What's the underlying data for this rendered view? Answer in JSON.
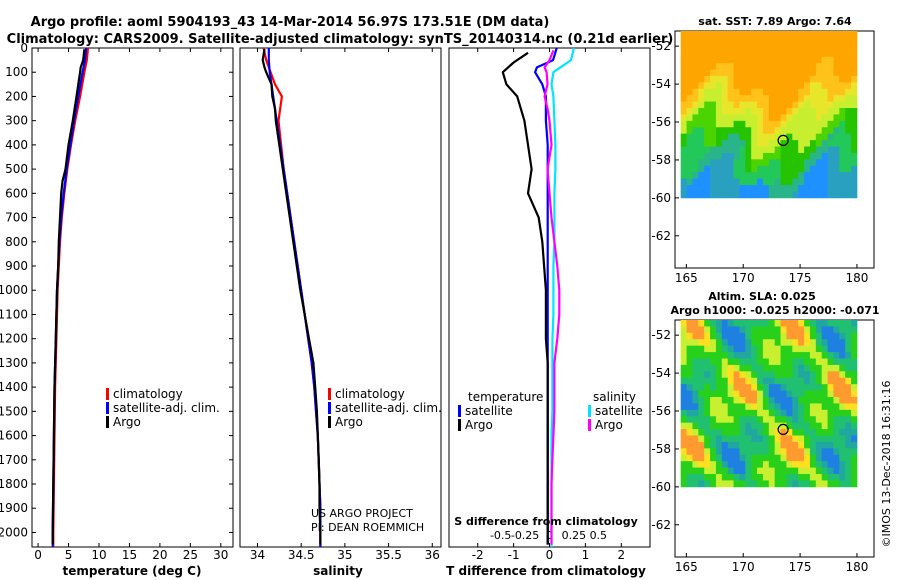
{
  "header": {
    "line1": "Argo profile: aoml 5904193_43 14-Mar-2014 56.97S 173.51E (DM data)",
    "line2": "Climatology: CARS2009. Satellite-adjusted climatology: synTS_20140314.nc (0.21d earlier)"
  },
  "colors": {
    "climatology": "#ff0000",
    "satellite": "#0000ff",
    "argo": "#000000",
    "satellite_salinity": "#00e5ff",
    "argo_salinity": "#ff00ff"
  },
  "chart_data": [
    {
      "id": "temperature",
      "type": "line",
      "xlabel": "temperature (deg C)",
      "ylabel": "",
      "xlim": [
        -1,
        32
      ],
      "ylim": [
        2060,
        0
      ],
      "x_ticks": [
        0,
        5,
        10,
        15,
        20,
        25,
        30
      ],
      "y_ticks": [
        0,
        100,
        200,
        300,
        400,
        500,
        600,
        700,
        800,
        900,
        1000,
        1100,
        1200,
        1300,
        1400,
        1500,
        1600,
        1700,
        1800,
        1900,
        2000
      ],
      "legend": [
        "climatology",
        "satellite-adj. clim.",
        "Argo"
      ],
      "legend_position": "lower-right",
      "series": [
        {
          "name": "climatology",
          "color": "#ff0000",
          "depth": [
            0,
            50,
            100,
            200,
            300,
            400,
            500,
            600,
            700,
            800,
            900,
            1000,
            1200,
            1400,
            1600,
            1800,
            2000,
            2060
          ],
          "values": [
            8.2,
            8.0,
            7.6,
            6.9,
            6.1,
            5.4,
            4.8,
            4.3,
            3.9,
            3.6,
            3.4,
            3.2,
            3.0,
            2.8,
            2.7,
            2.6,
            2.5,
            2.5
          ]
        },
        {
          "name": "satellite-adj. clim.",
          "color": "#0000ff",
          "depth": [
            0,
            50,
            100,
            200,
            300,
            400,
            500,
            600,
            700,
            800,
            900,
            1000,
            1200,
            1400,
            1600,
            1800,
            2000,
            2060
          ],
          "values": [
            7.9,
            7.7,
            7.3,
            6.6,
            5.9,
            5.3,
            4.7,
            4.2,
            3.8,
            3.5,
            3.3,
            3.1,
            2.9,
            2.7,
            2.6,
            2.5,
            2.4,
            2.4
          ]
        },
        {
          "name": "Argo",
          "color": "#000000",
          "depth": [
            5,
            50,
            80,
            100,
            150,
            200,
            300,
            400,
            500,
            550,
            600,
            700,
            800,
            900,
            1000,
            1200,
            1400,
            1600,
            1800,
            2000,
            2050
          ],
          "values": [
            7.6,
            7.4,
            7.0,
            6.9,
            6.6,
            6.3,
            5.7,
            5.0,
            4.5,
            4.0,
            3.8,
            3.6,
            3.4,
            3.3,
            3.1,
            2.9,
            2.7,
            2.6,
            2.5,
            2.4,
            2.4
          ]
        }
      ]
    },
    {
      "id": "salinity",
      "type": "line",
      "xlabel": "salinity",
      "ylabel": "",
      "xlim": [
        33.8,
        36.1
      ],
      "ylim": [
        2060,
        0
      ],
      "x_ticks": [
        34,
        34.5,
        35,
        35.5,
        36
      ],
      "x_tick_labels": [
        "34",
        "34.5",
        "35",
        "35.5",
        "36"
      ],
      "legend": [
        "climatology",
        "satellite-adj. clim.",
        "Argo"
      ],
      "legend_position": "lower-right",
      "annotations": [
        "US ARGO PROJECT",
        "PI: DEAN ROEMMICH"
      ],
      "series": [
        {
          "name": "climatology",
          "color": "#ff0000",
          "depth": [
            0,
            50,
            100,
            150,
            200,
            300,
            400,
            500,
            600,
            700,
            800,
            900,
            1000,
            1100,
            1200,
            1300,
            1400,
            1500,
            1600,
            1700,
            1800,
            1900,
            2000,
            2060
          ],
          "values": [
            34.07,
            34.1,
            34.15,
            34.2,
            34.28,
            34.24,
            34.27,
            34.3,
            34.34,
            34.38,
            34.42,
            34.46,
            34.5,
            34.54,
            34.58,
            34.62,
            34.65,
            34.67,
            34.69,
            34.7,
            34.71,
            34.72,
            34.72,
            34.72
          ]
        },
        {
          "name": "satellite-adj. clim.",
          "color": "#0000ff",
          "depth": [
            0,
            50,
            100,
            150,
            200,
            300,
            400,
            500,
            600,
            700,
            800,
            900,
            1000,
            1100,
            1200,
            1300,
            1400,
            1500,
            1600,
            1700,
            1800,
            1900,
            2000,
            2060
          ],
          "values": [
            34.13,
            34.13,
            34.14,
            34.16,
            34.18,
            34.22,
            34.26,
            34.3,
            34.34,
            34.38,
            34.42,
            34.46,
            34.5,
            34.54,
            34.58,
            34.62,
            34.65,
            34.67,
            34.69,
            34.7,
            34.71,
            34.72,
            34.72,
            34.72
          ]
        },
        {
          "name": "Argo",
          "color": "#000000",
          "depth": [
            5,
            50,
            80,
            100,
            150,
            200,
            250,
            300,
            400,
            500,
            600,
            700,
            800,
            900,
            1000,
            1100,
            1200,
            1300,
            1400,
            1500,
            1600,
            1700,
            1800,
            1900,
            2000,
            2050
          ],
          "values": [
            34.08,
            34.06,
            34.08,
            34.1,
            34.16,
            34.17,
            34.2,
            34.21,
            34.25,
            34.29,
            34.33,
            34.37,
            34.41,
            34.45,
            34.49,
            34.54,
            34.59,
            34.64,
            34.66,
            34.68,
            34.69,
            34.7,
            34.71,
            34.71,
            34.72,
            34.72
          ]
        }
      ]
    },
    {
      "id": "difference",
      "type": "line",
      "xlabel": "T difference from climatology",
      "secondary_xlabel": "S difference from climatology",
      "xlim": [
        -2.8,
        2.8
      ],
      "ylim": [
        2060,
        0
      ],
      "x_ticks": [
        -2,
        -1,
        0,
        1,
        2
      ],
      "x_tick_labels": [
        "-2",
        "-1",
        "0",
        "1",
        "2"
      ],
      "secondary_ticks": [
        -0.5,
        -0.25,
        0,
        0.25,
        0.5
      ],
      "secondary_tick_labels": [
        "-0.5",
        "-0.25",
        "0",
        "0.25",
        "0.5"
      ],
      "legend_titles": [
        "temperature",
        "salinity"
      ],
      "legend": [
        "satellite",
        "Argo",
        "satellite",
        "Argo"
      ],
      "legend_position": "lower",
      "series": [
        {
          "name": "temperature satellite",
          "color": "#0000ff",
          "depth": [
            0,
            50,
            80,
            100,
            150,
            200,
            300,
            400,
            500,
            600,
            800,
            1000,
            1200,
            1400,
            1600,
            1800,
            2000,
            2050
          ],
          "values": [
            0.2,
            0.1,
            -0.35,
            -0.4,
            -0.2,
            -0.1,
            -0.1,
            -0.05,
            -0.05,
            -0.05,
            -0.05,
            -0.05,
            -0.05,
            -0.05,
            -0.05,
            -0.05,
            -0.05,
            -0.05
          ]
        },
        {
          "name": "temperature Argo",
          "color": "#000000",
          "depth": [
            20,
            60,
            100,
            150,
            200,
            250,
            300,
            400,
            500,
            600,
            700,
            800,
            900,
            1000,
            1100,
            1200,
            1300,
            1400,
            1500,
            1600,
            1700,
            1800,
            1900,
            2000,
            2050
          ],
          "values": [
            -0.6,
            -1.0,
            -1.3,
            -1.2,
            -0.9,
            -0.8,
            -0.7,
            -0.6,
            -0.5,
            -0.6,
            -0.3,
            -0.2,
            -0.15,
            -0.1,
            -0.1,
            -0.1,
            -0.05,
            -0.05,
            -0.05,
            -0.05,
            -0.05,
            -0.05,
            -0.05,
            -0.05,
            -0.05
          ]
        },
        {
          "name": "salinity satellite",
          "color": "#00e5ff",
          "depth": [
            0,
            50,
            100,
            150,
            200,
            300,
            400,
            500,
            600,
            700,
            800,
            900,
            1000,
            1100,
            1200,
            1300,
            1400,
            1500,
            1600,
            1700,
            1800,
            1900,
            2000,
            2060
          ],
          "values": [
            0.25,
            0.22,
            0.04,
            0.02,
            0.04,
            0.05,
            0.06,
            0.06,
            0.05,
            0.05,
            0.05,
            0.04,
            0.04,
            0.04,
            0.03,
            0.03,
            0.03,
            0.03,
            0.02,
            0.02,
            0.02,
            0.02,
            0.02,
            0.02
          ]
        },
        {
          "name": "salinity Argo",
          "color": "#ff00ff",
          "depth": [
            10,
            50,
            80,
            100,
            150,
            200,
            250,
            300,
            400,
            500,
            600,
            700,
            800,
            900,
            1000,
            1100,
            1200,
            1300,
            1400,
            1500,
            1600,
            1700,
            1800,
            1900,
            2000,
            2050
          ],
          "values": [
            0.04,
            0.0,
            -0.05,
            -0.03,
            -0.02,
            -0.05,
            -0.02,
            0.0,
            0.02,
            -0.02,
            0.0,
            0.02,
            0.05,
            0.08,
            0.1,
            0.1,
            0.08,
            0.05,
            0.05,
            0.05,
            0.04,
            0.03,
            0.02,
            0.02,
            0.02,
            0.02
          ]
        }
      ]
    },
    {
      "id": "sst_map",
      "type": "heatmap",
      "title": "sat. SST: 7.89 Argo: 7.64",
      "xlim": [
        164,
        181.5
      ],
      "ylim": [
        -63.7,
        -51.2
      ],
      "x_ticks": [
        165,
        170,
        175,
        180
      ],
      "y_ticks": [
        -52,
        -54,
        -56,
        -58,
        -60,
        -62
      ],
      "data_extent": {
        "lon": [
          164.5,
          180
        ],
        "lat": [
          -60,
          -51.2
        ]
      },
      "profile_location": {
        "lon": 173.51,
        "lat": -56.97
      }
    },
    {
      "id": "sla_map",
      "type": "heatmap",
      "title": "Altim. SLA: 0.025",
      "subtitle": "Argo h1000: -0.025 h2000: -0.071",
      "xlim": [
        164,
        181.5
      ],
      "ylim": [
        -63.7,
        -51.2
      ],
      "x_ticks": [
        165,
        170,
        175,
        180
      ],
      "y_ticks": [
        -52,
        -54,
        -56,
        -58,
        -60,
        -62
      ],
      "data_extent": {
        "lon": [
          164.5,
          180
        ],
        "lat": [
          -60,
          -51.2
        ]
      },
      "profile_location": {
        "lon": 173.51,
        "lat": -56.97
      }
    }
  ],
  "footer": {
    "credit": "©IMOS 13-Dec-2018 16:31:16"
  }
}
